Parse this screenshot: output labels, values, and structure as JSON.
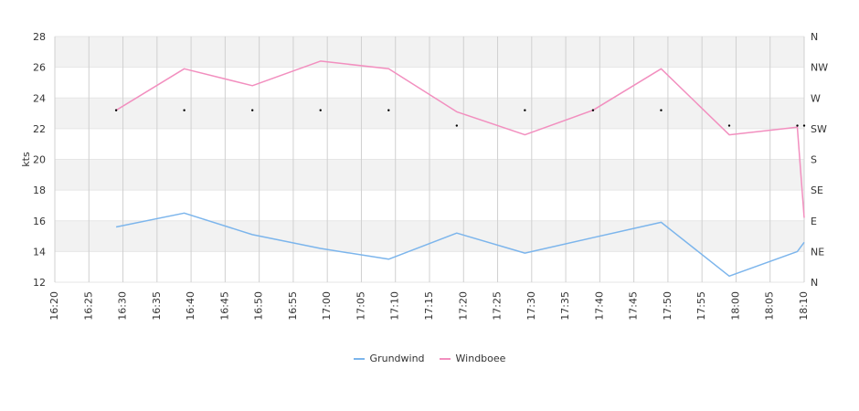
{
  "chart_data": {
    "type": "line",
    "ylabel": "kts",
    "ylim": [
      12,
      28
    ],
    "y_ticks": [
      "12",
      "14",
      "16",
      "18",
      "20",
      "22",
      "24",
      "26",
      "28"
    ],
    "right_axis_labels": [
      "N",
      "NE",
      "E",
      "SE",
      "S",
      "SW",
      "W",
      "NW",
      "N"
    ],
    "x_ticks": [
      "16:20",
      "16:25",
      "16:30",
      "16:35",
      "16:40",
      "16:45",
      "16:50",
      "16:55",
      "17:00",
      "17:05",
      "17:10",
      "17:15",
      "17:20",
      "17:25",
      "17:30",
      "17:35",
      "17:40",
      "17:45",
      "17:50",
      "17:55",
      "18:00",
      "18:05",
      "18:10"
    ],
    "x_range": [
      "16:20",
      "18:10"
    ],
    "grid": true,
    "legend_position": "bottom",
    "series": [
      {
        "name": "Grundwind",
        "color": "#7cb5ec",
        "x": [
          "16:29",
          "16:39",
          "16:49",
          "16:59",
          "17:09",
          "17:19",
          "17:29",
          "17:39",
          "17:49",
          "17:59",
          "18:09",
          "18:10"
        ],
        "values": [
          15.6,
          16.5,
          15.1,
          14.2,
          13.5,
          15.2,
          13.9,
          14.9,
          15.9,
          12.4,
          14.0,
          14.6
        ]
      },
      {
        "name": "Windboee",
        "color": "#f28fbf",
        "x": [
          "16:29",
          "16:39",
          "16:49",
          "16:59",
          "17:09",
          "17:19",
          "17:29",
          "17:39",
          "17:49",
          "17:59",
          "18:09",
          "18:10"
        ],
        "values": [
          23.2,
          25.9,
          24.8,
          26.4,
          25.9,
          23.1,
          21.6,
          23.2,
          25.9,
          21.6,
          22.1,
          16.2
        ]
      }
    ],
    "direction_markers": {
      "x": [
        "16:29",
        "16:39",
        "16:49",
        "16:59",
        "17:09",
        "17:19",
        "17:29",
        "17:39",
        "17:49",
        "17:59",
        "18:09",
        "18:10"
      ],
      "values": [
        23.2,
        23.2,
        23.2,
        23.2,
        23.2,
        22.2,
        23.2,
        23.2,
        23.2,
        22.2,
        22.2,
        22.2
      ]
    }
  }
}
